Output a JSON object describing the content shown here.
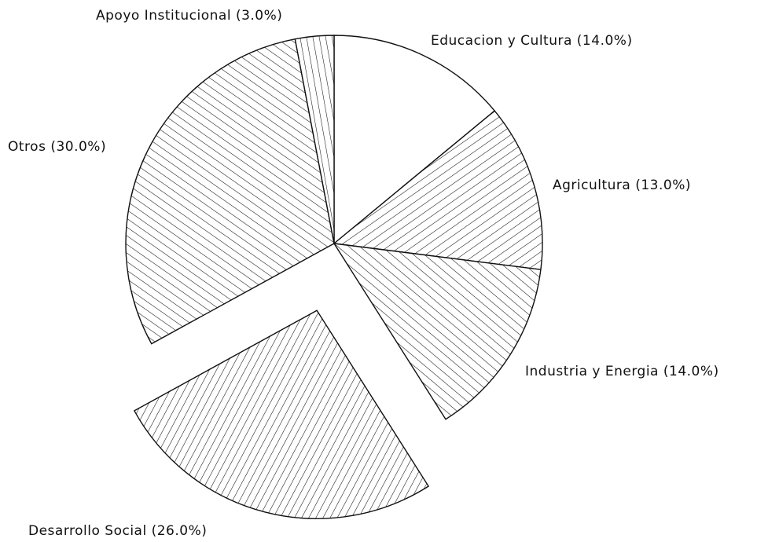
{
  "chart_data": {
    "type": "pie",
    "value_labels": [
      "Educacion y Cultura (14.0%)",
      "Agricultura (13.0%)",
      "Industria y Energia (14.0%)",
      "Desarrollo Social (26.0%)",
      "Otros (30.0%)",
      "Apoyo Institucional (3.0%)"
    ],
    "values": [
      14,
      13,
      14,
      26,
      30,
      3
    ],
    "exploded_index": 3
  }
}
